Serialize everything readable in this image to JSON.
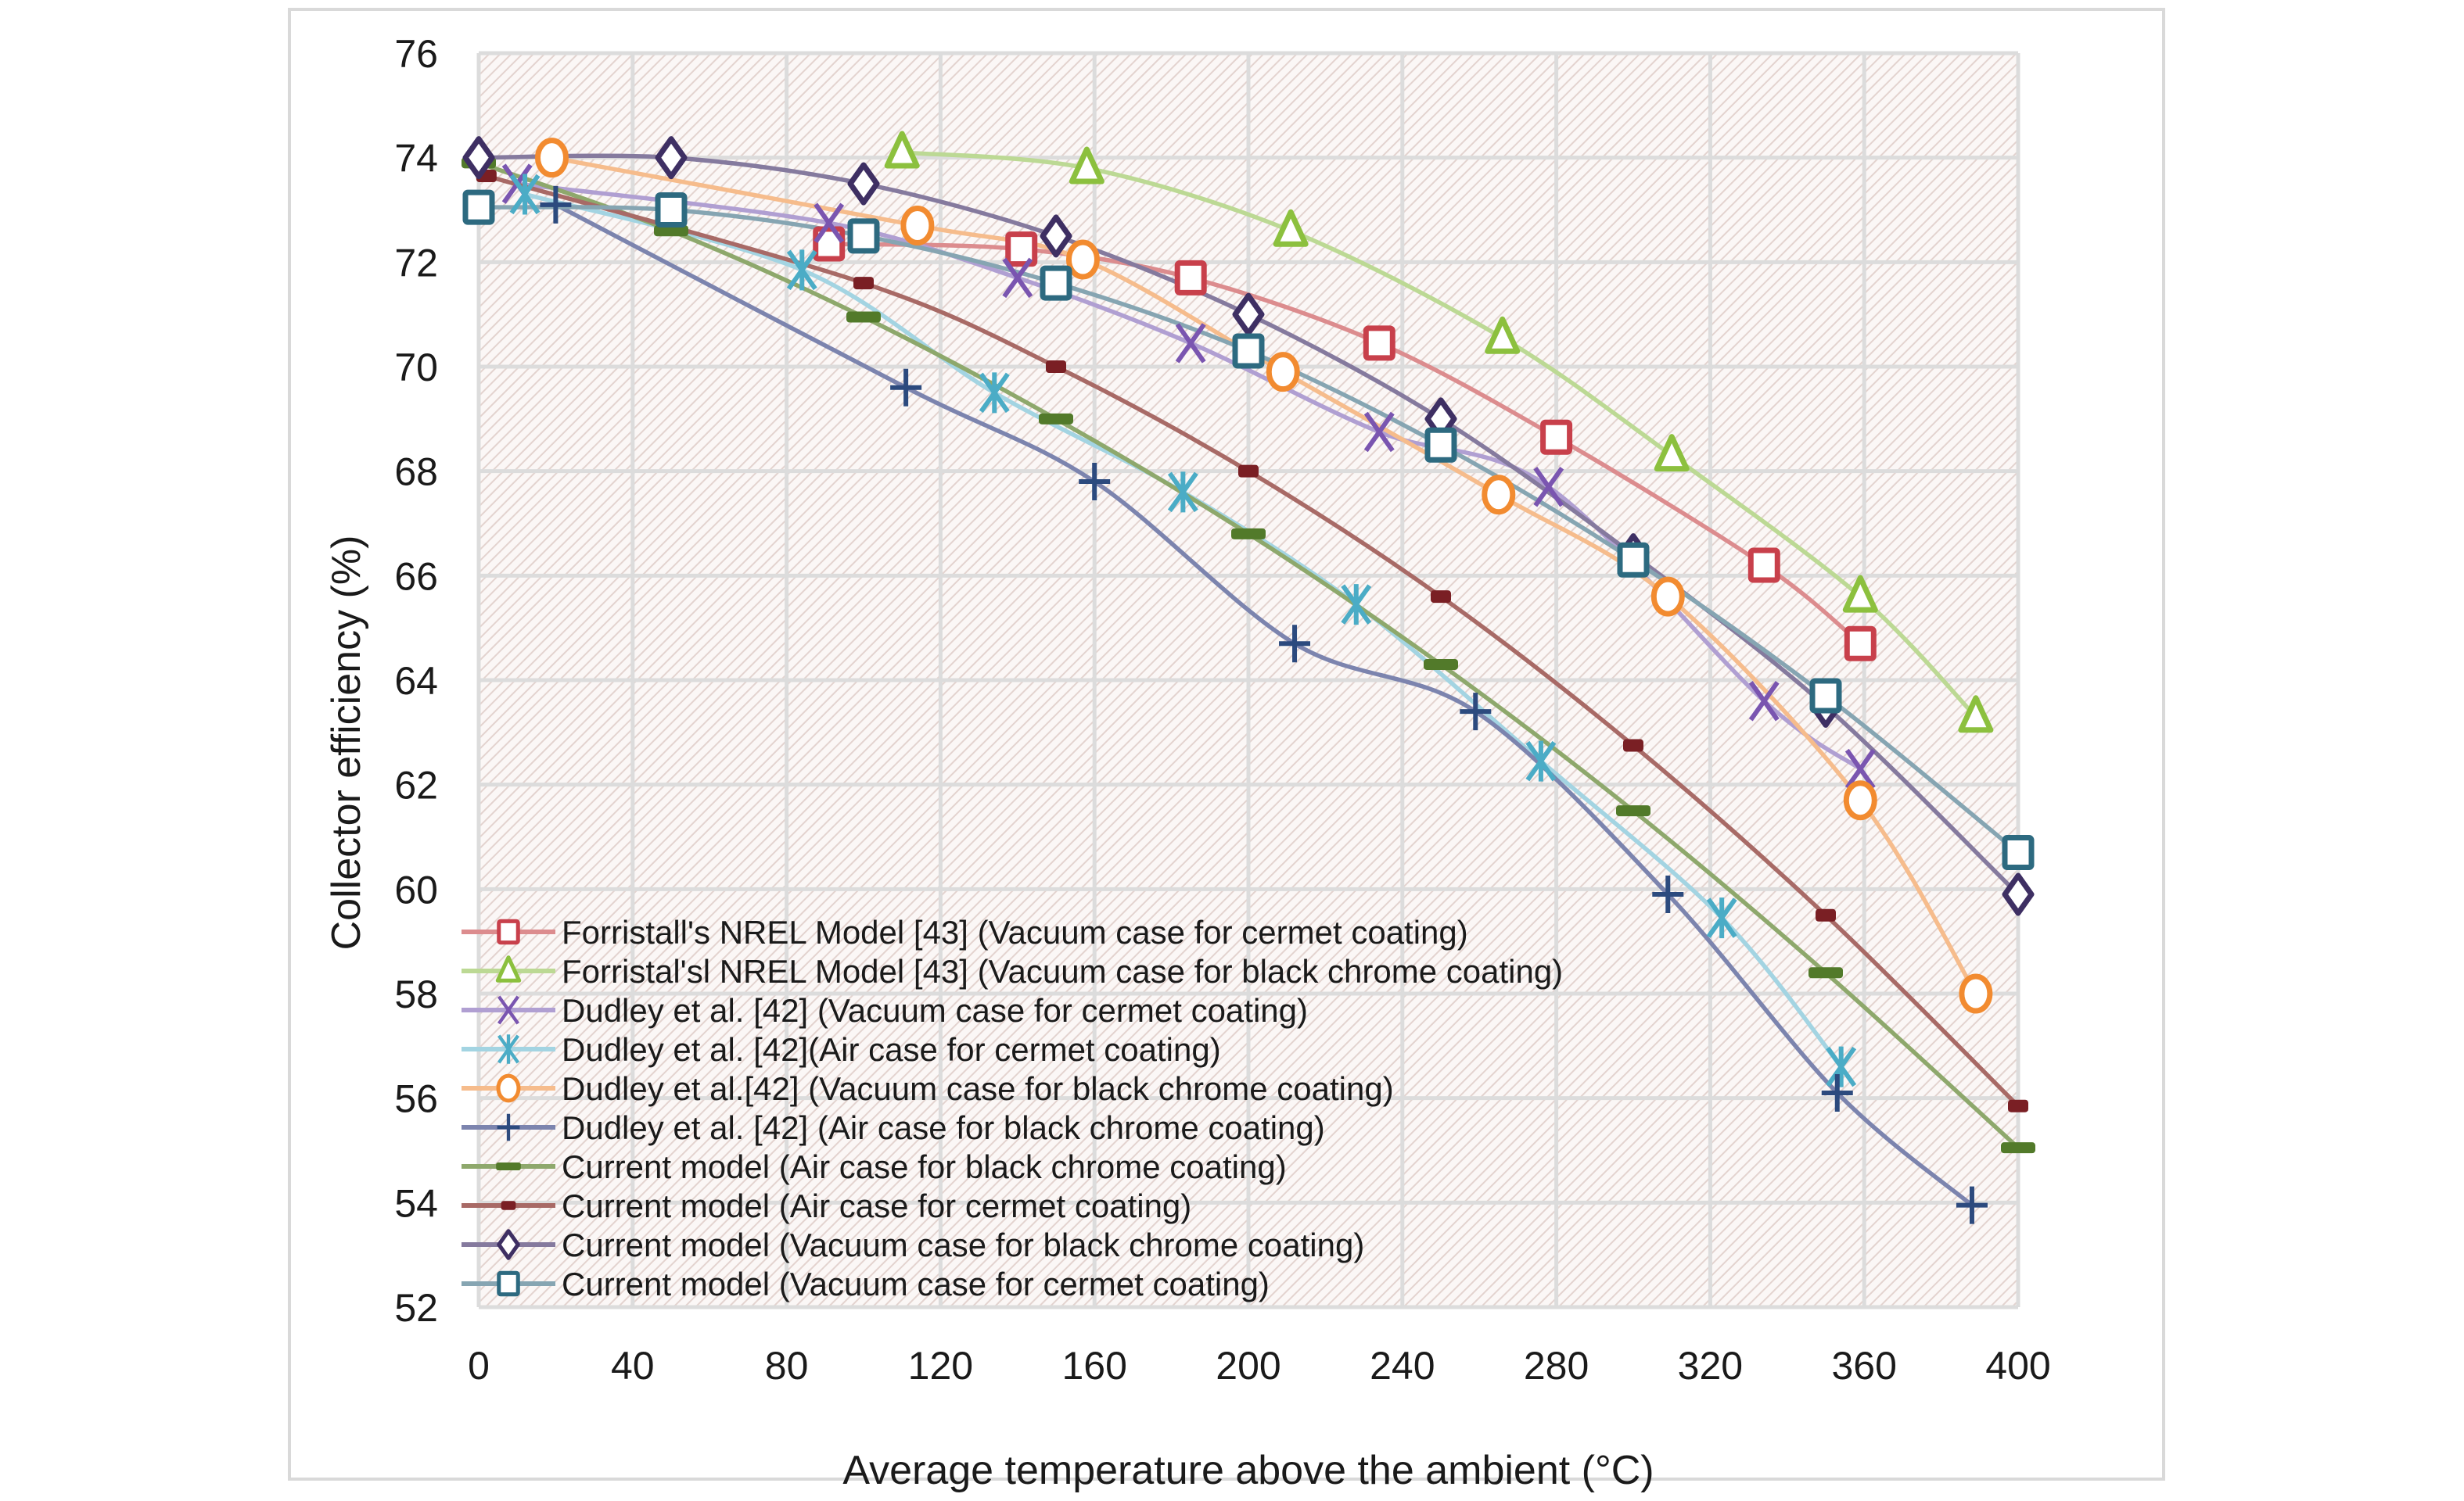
{
  "chart_data": {
    "type": "line",
    "title": "",
    "xlabel": "Average temperature above the ambient (°C)",
    "ylabel": "Collector efficiency (%)",
    "xlim": [
      0,
      400
    ],
    "ylim": [
      52,
      76
    ],
    "xticks": [
      0,
      40,
      80,
      120,
      160,
      200,
      240,
      280,
      320,
      360,
      400
    ],
    "yticks": [
      52,
      54,
      56,
      58,
      60,
      62,
      64,
      66,
      68,
      70,
      72,
      74,
      76
    ],
    "grid": true,
    "legend_position": "bottom-left",
    "series": [
      {
        "name": "Forristall's NREL Model [43] (Vacuum case for cermet coating)",
        "marker": "square",
        "color": "#c8404b",
        "line_color": "#dc8c8e",
        "x": [
          91,
          141,
          185,
          234,
          280,
          334,
          359
        ],
        "y": [
          72.35,
          72.25,
          71.7,
          70.45,
          68.65,
          66.2,
          64.7
        ]
      },
      {
        "name": "Forristal'sl NREL Model [43] (Vacuum case for black chrome coating)",
        "marker": "triangle",
        "color": "#8cc03e",
        "line_color": "#bcd994",
        "x": [
          110,
          158,
          211,
          266,
          310,
          359,
          389
        ],
        "y": [
          74.1,
          73.8,
          72.6,
          70.55,
          68.3,
          65.6,
          63.3
        ]
      },
      {
        "name": "Dudley et al. [42] (Vacuum case for cermet coating)",
        "marker": "x",
        "color": "#7a55b0",
        "line_color": "#b09fd2",
        "x": [
          10,
          91,
          140,
          185,
          234,
          278,
          334,
          359
        ],
        "y": [
          73.5,
          72.75,
          71.7,
          70.45,
          68.75,
          67.7,
          63.6,
          62.3
        ]
      },
      {
        "name": "Dudley et al. [42](Air case for cermet coating)",
        "marker": "asterisk",
        "color": "#4bacc6",
        "line_color": "#a3d4e2",
        "x": [
          12,
          84,
          134,
          183,
          228,
          276,
          323,
          354
        ],
        "y": [
          73.3,
          71.85,
          69.5,
          67.6,
          65.45,
          62.45,
          59.45,
          56.6
        ]
      },
      {
        "name": "Dudley et al.[42] (Vacuum case for black chrome coating)",
        "marker": "circle",
        "color": "#f28b30",
        "line_color": "#f6bc8c",
        "x": [
          19,
          114,
          157,
          209,
          265,
          309,
          359,
          389
        ],
        "y": [
          74.0,
          72.7,
          72.05,
          69.9,
          67.55,
          65.6,
          61.7,
          58.0
        ]
      },
      {
        "name": "Dudley et al. [42] (Air case for black chrome coating)",
        "marker": "plus",
        "color": "#2c4a7e",
        "line_color": "#7c84ae",
        "x": [
          20,
          111,
          160,
          212,
          259,
          309,
          353,
          388
        ],
        "y": [
          73.1,
          69.6,
          67.8,
          64.7,
          63.4,
          59.9,
          56.1,
          53.95
        ]
      },
      {
        "name": "Current model (Air case for black chrome coating)",
        "marker": "dash",
        "color": "#527a2a",
        "line_color": "#8ea86c",
        "x": [
          0,
          50,
          100,
          150,
          200,
          250,
          300,
          350,
          400
        ],
        "y": [
          73.9,
          72.6,
          70.95,
          69.0,
          66.8,
          64.3,
          61.5,
          58.4,
          55.05
        ]
      },
      {
        "name": "Current model (Air case for cermet coating)",
        "marker": "small-dash",
        "color": "#7a1f24",
        "line_color": "#a86a66",
        "x": [
          2,
          100,
          150,
          200,
          250,
          300,
          350,
          400
        ],
        "y": [
          73.65,
          71.6,
          70.0,
          68.0,
          65.6,
          62.75,
          59.5,
          55.85
        ]
      },
      {
        "name": "Current model (Vacuum case for black chrome coating)",
        "marker": "diamond",
        "color": "#3e2f63",
        "line_color": "#857a9e",
        "x": [
          0,
          50,
          100,
          150,
          200,
          250,
          300,
          350,
          400
        ],
        "y": [
          74.0,
          74.0,
          73.5,
          72.5,
          71.0,
          69.0,
          66.4,
          63.5,
          59.9
        ]
      },
      {
        "name": "Current model (Vacuum case for cermet coating)",
        "marker": "square",
        "color": "#2d6a80",
        "line_color": "#86a5b2",
        "x": [
          0,
          50,
          100,
          150,
          200,
          250,
          300,
          350,
          400
        ],
        "y": [
          73.05,
          73.0,
          72.5,
          71.6,
          70.3,
          68.5,
          66.3,
          63.7,
          60.7
        ]
      }
    ]
  }
}
